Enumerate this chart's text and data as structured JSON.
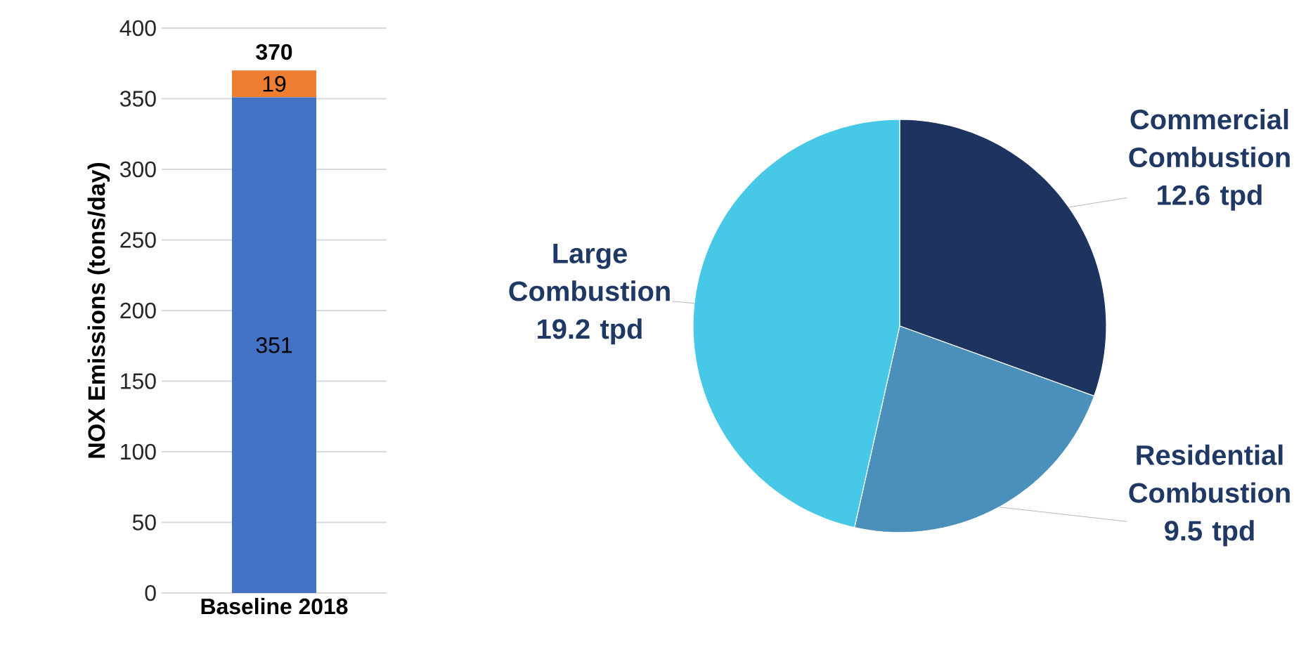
{
  "chart_data": [
    {
      "type": "bar",
      "categories": [
        "Baseline 2018"
      ],
      "stacked": true,
      "ylabel": "NOX Emissions (tons/day)",
      "series": [
        {
          "color": "#4472c4",
          "values": [
            351
          ]
        },
        {
          "color": "#ed7d31",
          "values": [
            19
          ]
        }
      ],
      "ylim": [
        0,
        400
      ],
      "yticks": [
        0,
        50,
        100,
        150,
        200,
        250,
        300,
        350,
        400
      ],
      "grid": "y",
      "data_labels": true,
      "totals": [
        "370"
      ]
    },
    {
      "type": "pie",
      "categories": [
        "Commercial Combustion",
        "Residential Combustion",
        "Large Combustion"
      ],
      "values": [
        12.6,
        9.5,
        19.2
      ],
      "value_labels": [
        "12.6 tpd",
        "9.5 tpd",
        "19.2 tpd"
      ],
      "colors": [
        "#1d3461",
        "#4a90ba",
        "#46c8e6"
      ]
    }
  ]
}
